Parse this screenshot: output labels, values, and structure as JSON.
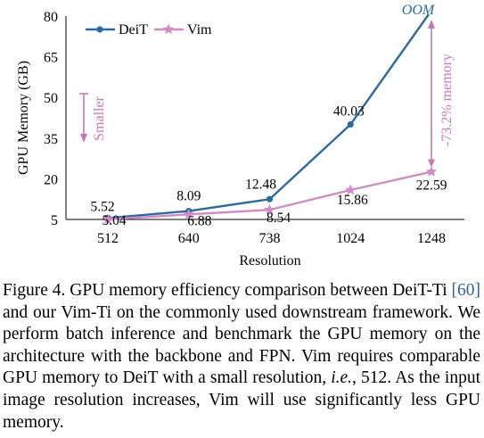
{
  "chart_data": {
    "type": "line",
    "categories": [
      "512",
      "640",
      "738",
      "1024",
      "1248"
    ],
    "xlabel": "Resolution",
    "ylabel": "GPU Memory (GB)",
    "ylim": [
      5,
      80
    ],
    "yticks": [
      "5",
      "20",
      "35",
      "50",
      "65",
      "80"
    ],
    "grid": false,
    "legend_position": "top-left",
    "series": [
      {
        "name": "DeiT",
        "values": [
          5.52,
          8.09,
          12.48,
          40.03,
          null
        ],
        "labels": [
          "5.52",
          "8.09",
          "12.48",
          "40.03",
          null
        ],
        "color": "#2e6a9e",
        "marker": "circle",
        "oom_label": "OOM"
      },
      {
        "name": "Vim",
        "values": [
          5.04,
          6.88,
          8.54,
          15.86,
          22.59
        ],
        "labels": [
          "5.04",
          "6.88",
          "8.54",
          "15.86",
          "22.59"
        ],
        "color": "#d08cc4",
        "marker": "star"
      }
    ],
    "annotations": {
      "smaller": "Smaller",
      "reduction": "-73.2% memory"
    },
    "colors": {
      "annotation": "#c678b6",
      "oom": "#2e6a9e"
    }
  },
  "caption": {
    "prefix": "Figure 4.  GPU memory efficiency comparison between DeiT-Ti ",
    "ref": "[60]",
    "part2": " and our Vim-Ti on the commonly used downstream framework. We perform batch inference and benchmark the GPU memory on the architecture with the backbone and FPN. Vim requires comparable GPU memory to DeiT with a small resolution, ",
    "ie": "i.e.",
    "part3": ", 512. As the input image resolution increases, Vim will use significantly less GPU memory."
  }
}
